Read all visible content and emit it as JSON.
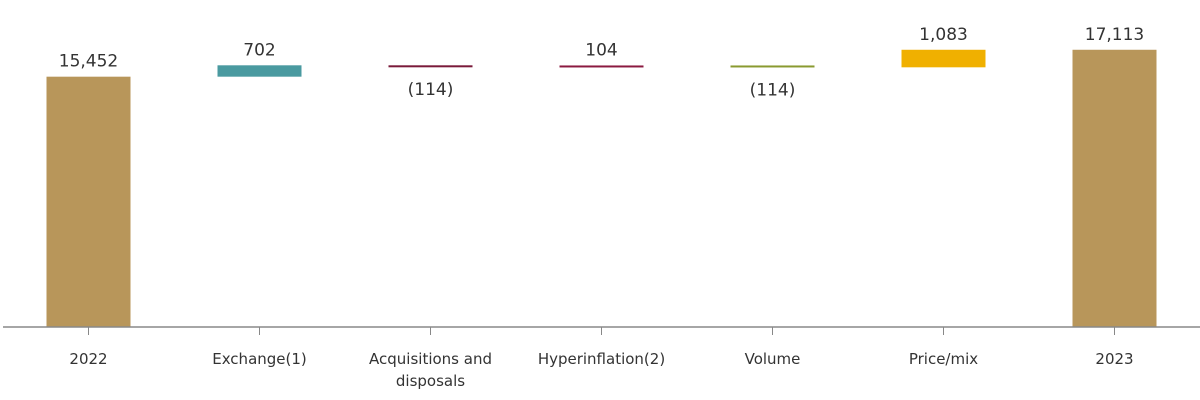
{
  "chart_data": {
    "type": "waterfall",
    "categories": [
      "2022",
      "Exchange(1)",
      "Acquisitions and disposals",
      "Hyperinflation(2)",
      "Volume",
      "Price/mix",
      "2023"
    ],
    "values": [
      15452,
      702,
      -114,
      104,
      -114,
      1083,
      17113
    ],
    "value_labels": [
      "15,452",
      "702",
      "(114)",
      "104",
      "(114)",
      "1,083",
      "17,113"
    ],
    "colors": [
      "#b8965a",
      "#4a9aa0",
      "#7a1a3a",
      "#8b1a40",
      "#8a9a30",
      "#f0b000",
      "#b8965a"
    ],
    "ylim": [
      0,
      20000
    ]
  }
}
